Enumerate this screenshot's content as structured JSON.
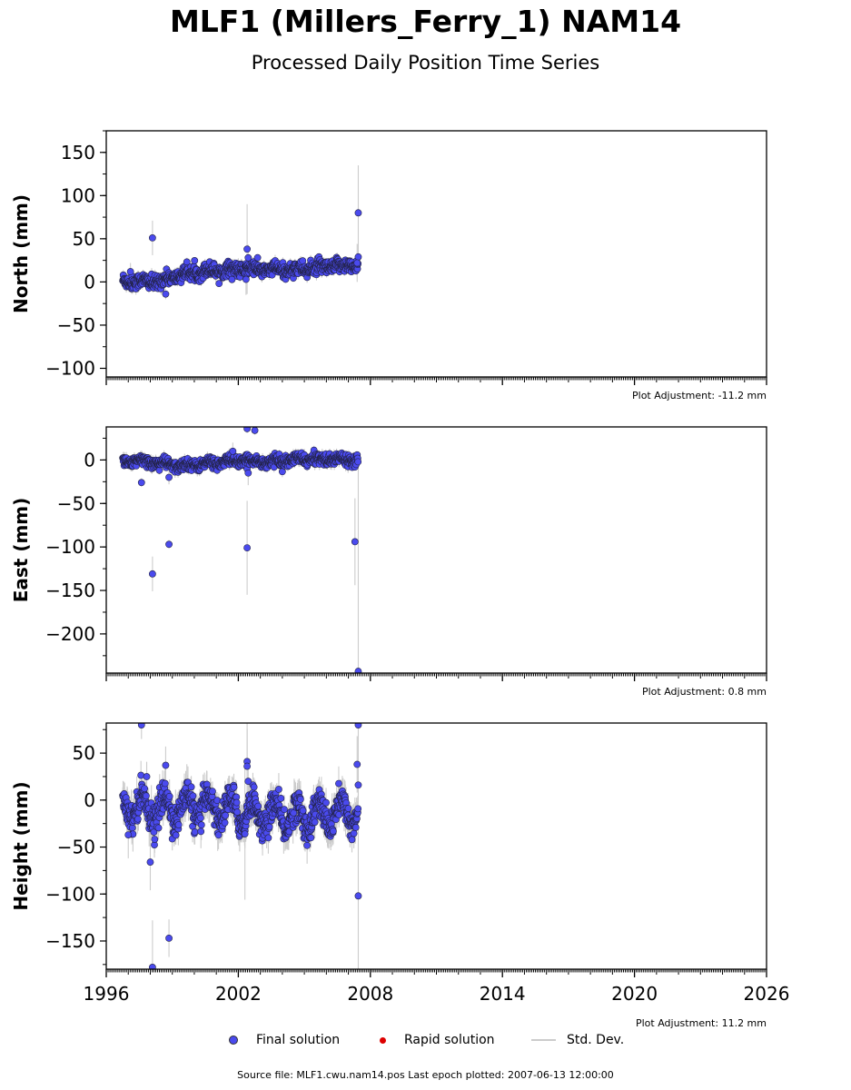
{
  "title": "MLF1 (Millers_Ferry_1) NAM14",
  "subtitle": "Processed Daily Position Time Series",
  "colors": {
    "final": "#4a4aee",
    "rapid": "#dd0000",
    "stddev": "#cccccc"
  },
  "legend": {
    "final": "Final solution",
    "rapid": "Rapid solution",
    "stddev": "Std. Dev."
  },
  "source_text": "Source file: MLF1.cwu.nam14.pos  Last epoch plotted: 2007-06-13 12:00:00",
  "chart_data": [
    {
      "type": "scatter",
      "ylabel": "North (mm)",
      "xlim": [
        1996,
        2026
      ],
      "ylim": [
        -110,
        175
      ],
      "yticks": [
        150,
        100,
        50,
        0,
        -50,
        -100
      ],
      "xticks": [
        1996,
        2002,
        2008,
        2014,
        2020,
        2026
      ],
      "show_xtick_labels": false,
      "adjustment": "Plot Adjustment: -11.2 mm",
      "trend": [
        [
          1996.8,
          1
        ],
        [
          1998.4,
          0
        ],
        [
          1999.2,
          7
        ],
        [
          2000.5,
          13
        ],
        [
          2002.3,
          15
        ],
        [
          2004.0,
          14
        ],
        [
          2005.5,
          16
        ],
        [
          2007.45,
          20
        ]
      ],
      "noise": 4,
      "seasonal": 2,
      "std": 5,
      "outliers": [
        {
          "x": 1998.1,
          "y": 51,
          "err": 20
        },
        {
          "x": 2002.4,
          "y": 38,
          "err": 52
        },
        {
          "x": 2002.45,
          "y": 28,
          "err": 15
        },
        {
          "x": 2002.35,
          "y": 3,
          "err": 18
        },
        {
          "x": 1998.7,
          "y": -14,
          "err": 6
        },
        {
          "x": 1997.1,
          "y": 12,
          "err": 10
        },
        {
          "x": 2007.45,
          "y": 80,
          "err": 55
        },
        {
          "x": 2007.45,
          "y": 29,
          "err": 15
        },
        {
          "x": 2007.4,
          "y": 22,
          "err": 22
        }
      ]
    },
    {
      "type": "scatter",
      "ylabel": "East (mm)",
      "xlim": [
        1996,
        2026
      ],
      "ylim": [
        -245,
        38
      ],
      "yticks": [
        0,
        -50,
        -100,
        -150,
        -200
      ],
      "xticks": [
        1996,
        2002,
        2008,
        2014,
        2020,
        2026
      ],
      "show_xtick_labels": false,
      "adjustment": "Plot Adjustment: 0.8 mm",
      "trend": [
        [
          1996.8,
          -1
        ],
        [
          1998.0,
          -2
        ],
        [
          1999.3,
          -7
        ],
        [
          2000.6,
          -4
        ],
        [
          2002.0,
          -1
        ],
        [
          2003.5,
          -2
        ],
        [
          2005.0,
          1
        ],
        [
          2007.45,
          1
        ]
      ],
      "noise": 3,
      "seasonal": 2,
      "std": 5,
      "outliers": [
        {
          "x": 1997.6,
          "y": -26,
          "err": 5
        },
        {
          "x": 1998.1,
          "y": -131,
          "err": 20
        },
        {
          "x": 1998.85,
          "y": -97,
          "err": 5
        },
        {
          "x": 1998.85,
          "y": -20,
          "err": 8
        },
        {
          "x": 2002.4,
          "y": 36,
          "err": 5
        },
        {
          "x": 2002.75,
          "y": 34,
          "err": 5
        },
        {
          "x": 2002.4,
          "y": -101,
          "err": 54
        },
        {
          "x": 2002.45,
          "y": -15,
          "err": 14
        },
        {
          "x": 2001.75,
          "y": 10,
          "err": 10
        },
        {
          "x": 2007.3,
          "y": -94,
          "err": 50
        },
        {
          "x": 2007.45,
          "y": -243,
          "err": 240
        }
      ]
    },
    {
      "type": "scatter",
      "ylabel": "Height (mm)",
      "xlim": [
        1996,
        2026
      ],
      "ylim": [
        -180,
        82
      ],
      "yticks": [
        50,
        0,
        -50,
        -100,
        -150
      ],
      "xticks": [
        1996,
        2002,
        2008,
        2014,
        2020,
        2026
      ],
      "show_xtick_labels": true,
      "adjustment": "Plot Adjustment: 11.2 mm",
      "trend": [
        [
          1996.8,
          -4
        ],
        [
          1998.5,
          -10
        ],
        [
          2000.5,
          -6
        ],
        [
          2002.5,
          -14
        ],
        [
          2004.5,
          -18
        ],
        [
          2006.0,
          -16
        ],
        [
          2007.45,
          -12
        ]
      ],
      "noise": 8,
      "seasonal": 14,
      "std": 14,
      "outliers": [
        {
          "x": 1997.6,
          "y": 80,
          "err": 15
        },
        {
          "x": 1998.0,
          "y": -66,
          "err": 30
        },
        {
          "x": 1998.1,
          "y": -178,
          "err": 50
        },
        {
          "x": 1998.7,
          "y": 37,
          "err": 20
        },
        {
          "x": 1998.85,
          "y": -147,
          "err": 20
        },
        {
          "x": 2002.4,
          "y": 41,
          "err": 60
        },
        {
          "x": 2002.4,
          "y": 36,
          "err": 40
        },
        {
          "x": 2002.45,
          "y": 20,
          "err": 20
        },
        {
          "x": 2002.3,
          "y": -36,
          "err": 70
        },
        {
          "x": 1997.0,
          "y": -37,
          "err": 25
        },
        {
          "x": 2007.4,
          "y": 38,
          "err": 30
        },
        {
          "x": 2007.45,
          "y": 80,
          "err": 80
        },
        {
          "x": 2007.45,
          "y": 16,
          "err": 20
        },
        {
          "x": 2007.45,
          "y": -102,
          "err": 80
        }
      ]
    }
  ]
}
